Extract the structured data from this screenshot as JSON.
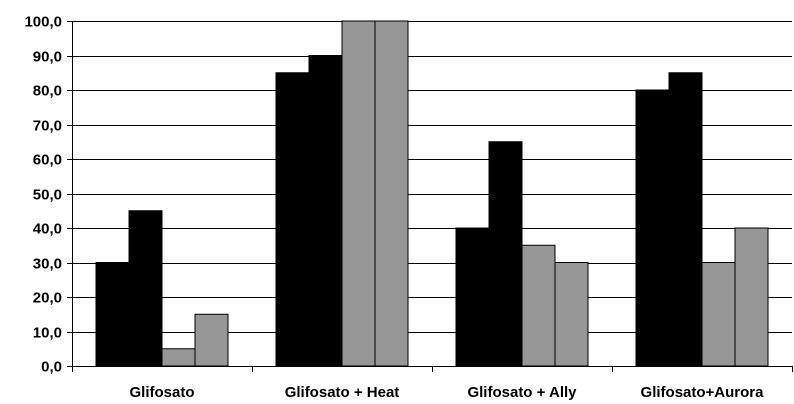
{
  "chart_data": {
    "type": "bar",
    "title": "",
    "xlabel": "",
    "ylabel": "",
    "categories": [
      "Glifosato",
      "Glifosato + Heat",
      "Glifosato + Ally",
      "Glifosato+Aurora"
    ],
    "series": [
      {
        "values": [
          30.0,
          85.0,
          40.0,
          80.0
        ],
        "color": "#000000"
      },
      {
        "values": [
          45.0,
          90.0,
          65.0,
          85.0
        ],
        "color": "#000000"
      },
      {
        "values": [
          5.0,
          100.0,
          35.0,
          30.0
        ],
        "color": "#969696"
      },
      {
        "values": [
          15.0,
          100.0,
          30.0,
          40.0
        ],
        "color": "#969696"
      }
    ],
    "ylim": [
      0,
      100
    ],
    "yticks": [
      "0,0",
      "10,0",
      "20,0",
      "30,0",
      "40,0",
      "50,0",
      "60,0",
      "70,0",
      "80,0",
      "90,0",
      "100,0"
    ],
    "grid": true,
    "legend": "none"
  }
}
